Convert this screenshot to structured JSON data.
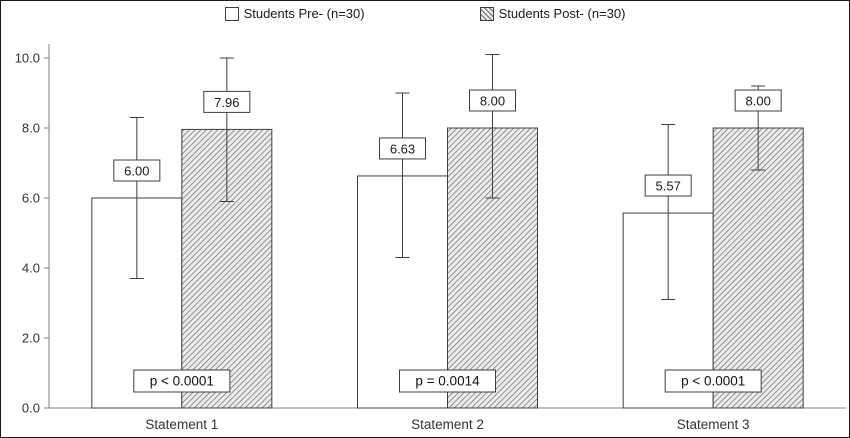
{
  "chart_data": {
    "type": "bar",
    "title": "",
    "categories": [
      "Statement 1",
      "Statement 2",
      "Statement 3"
    ],
    "series": [
      {
        "name": "Students Pre- (n=30)",
        "values": [
          6.0,
          6.63,
          5.57
        ],
        "labels": [
          "6.00",
          "6.63",
          "5.57"
        ],
        "error_low": [
          3.7,
          4.3,
          3.1
        ],
        "error_high": [
          8.3,
          9.0,
          8.1
        ],
        "fill": "#ffffff",
        "pattern": "none"
      },
      {
        "name": "Students Post- (n=30)",
        "values": [
          7.96,
          8.0,
          8.0
        ],
        "labels": [
          "7.96",
          "8.00",
          "8.00"
        ],
        "error_low": [
          5.9,
          6.0,
          6.8
        ],
        "error_high": [
          10.0,
          10.1,
          9.2
        ],
        "fill": "hatch",
        "pattern": "diagonal-hatch"
      }
    ],
    "annotations": [
      "p < 0.0001",
      "p = 0.0014",
      "p < 0.0001"
    ],
    "xlabel": "",
    "ylabel": "",
    "ylim": [
      0,
      10.4
    ],
    "yticks": [
      "0.0",
      "2.0",
      "4.0",
      "6.0",
      "8.0",
      "10.0"
    ],
    "grid": false,
    "legend_position": "top",
    "colors": {
      "bar_stroke": "#3f3f3f",
      "axis": "#7f7f7f",
      "text": "#333333",
      "hatch_line": "#6b6b6b",
      "hatch_bg": "#ececec",
      "label_box_fill": "#ffffff"
    }
  }
}
